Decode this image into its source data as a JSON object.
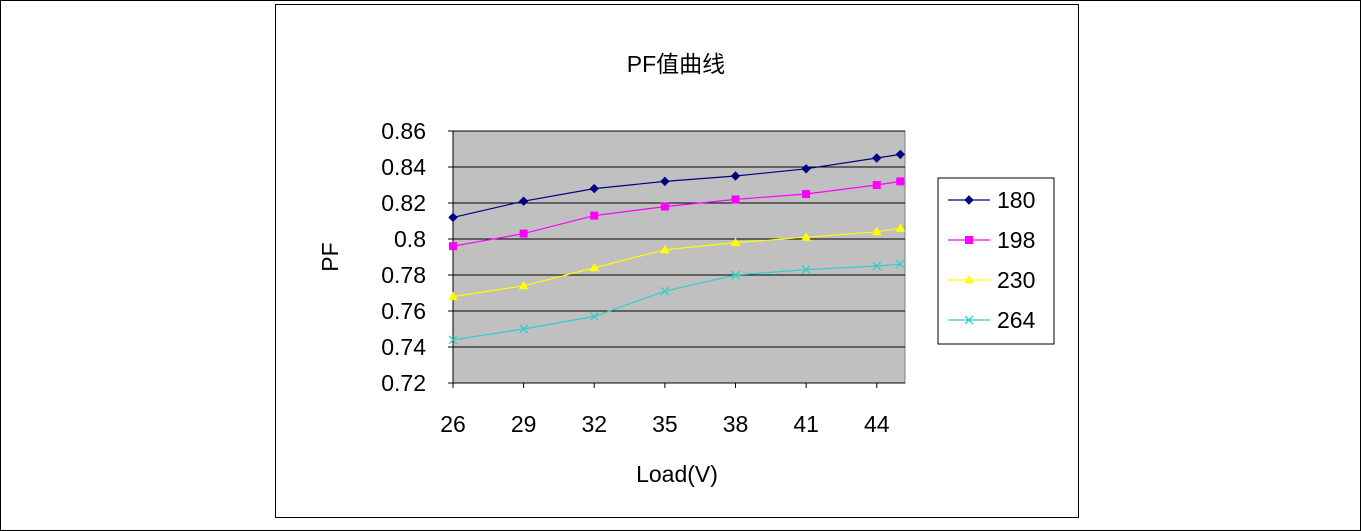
{
  "chart_data": {
    "type": "line",
    "title": "PF值曲线",
    "xlabel": "Load(V)",
    "ylabel": "PF",
    "categories": [
      "26",
      "29",
      "32",
      "35",
      "38",
      "41",
      "44"
    ],
    "x": [
      26,
      29,
      32,
      35,
      38,
      41,
      44,
      45
    ],
    "xlim": [
      26,
      45.2
    ],
    "ylim": [
      0.72,
      0.86
    ],
    "yticks": [
      "0.86",
      "0.84",
      "0.82",
      "0.8",
      "0.78",
      "0.76",
      "0.74",
      "0.72"
    ],
    "ytick_values": [
      0.86,
      0.84,
      0.82,
      0.8,
      0.78,
      0.76,
      0.74,
      0.72
    ],
    "grid": true,
    "legend_position": "right",
    "plot_background": "#c0c0c0",
    "series": [
      {
        "name": "180",
        "color": "#000080",
        "marker": "diamond",
        "values": [
          0.812,
          0.821,
          0.828,
          0.832,
          0.835,
          0.839,
          0.845,
          0.847
        ]
      },
      {
        "name": "198",
        "color": "#ff00ff",
        "marker": "square",
        "values": [
          0.796,
          0.803,
          0.813,
          0.818,
          0.822,
          0.825,
          0.83,
          0.832
        ]
      },
      {
        "name": "230",
        "color": "#ffff00",
        "marker": "triangle",
        "values": [
          0.768,
          0.774,
          0.784,
          0.794,
          0.798,
          0.801,
          0.804,
          0.806
        ]
      },
      {
        "name": "264",
        "color": "#33cccc",
        "marker": "x",
        "values": [
          0.744,
          0.75,
          0.757,
          0.771,
          0.78,
          0.783,
          0.785,
          0.786
        ]
      }
    ]
  }
}
